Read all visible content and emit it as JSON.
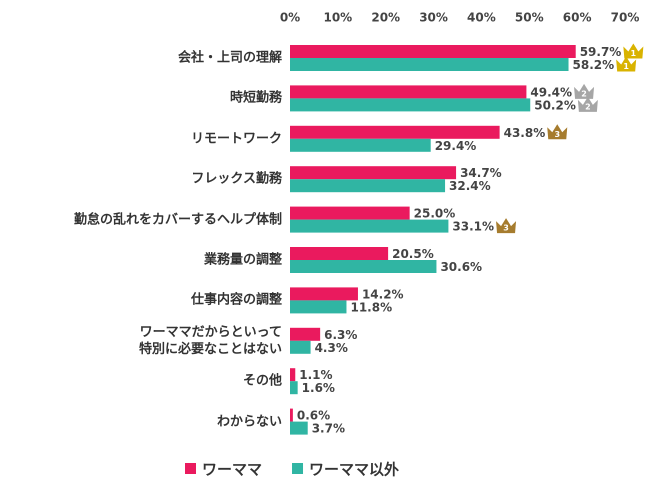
{
  "chart_data": {
    "type": "bar",
    "orientation": "horizontal",
    "categories": [
      "会社・上司の理解",
      "時短勤務",
      "リモートワーク",
      "フレックス勤務",
      "勤怠の乱れをカバーするヘルプ体制",
      "業務量の調整",
      "仕事内容の調整",
      "ワーママだからといって\n特別に必要なことはない",
      "その他",
      "わからない"
    ],
    "series": [
      {
        "name": "ワーママ",
        "color": "#ea1a5e",
        "values": [
          59.7,
          49.4,
          43.8,
          34.7,
          25.0,
          20.5,
          14.2,
          6.3,
          1.1,
          0.6
        ],
        "value_labels": [
          "59.7%",
          "49.4%",
          "43.8%",
          "34.7%",
          "25.0%",
          "20.5%",
          "14.2%",
          "6.3%",
          "1.1%",
          "0.6%"
        ],
        "ranks": [
          1,
          2,
          3,
          null,
          null,
          null,
          null,
          null,
          null,
          null
        ]
      },
      {
        "name": "ワーママ以外",
        "color": "#30b5a3",
        "values": [
          58.2,
          50.2,
          29.4,
          32.4,
          33.1,
          30.6,
          11.8,
          4.3,
          1.6,
          3.7
        ],
        "value_labels": [
          "58.2%",
          "50.2%",
          "29.4%",
          "32.4%",
          "33.1%",
          "30.6%",
          "11.8%",
          "4.3%",
          "1.6%",
          "3.7%"
        ],
        "ranks": [
          1,
          2,
          null,
          null,
          3,
          null,
          null,
          null,
          null,
          null
        ]
      }
    ],
    "xlim": [
      0,
      70
    ],
    "xticks": [
      {
        "value": 0,
        "label": "0%"
      },
      {
        "value": 10,
        "label": "10%"
      },
      {
        "value": 20,
        "label": "20%"
      },
      {
        "value": 30,
        "label": "30%"
      },
      {
        "value": 40,
        "label": "40%"
      },
      {
        "value": 50,
        "label": "50%"
      },
      {
        "value": 60,
        "label": "60%"
      },
      {
        "value": 70,
        "label": "70%"
      }
    ],
    "grid": false,
    "legend": "bottom"
  }
}
